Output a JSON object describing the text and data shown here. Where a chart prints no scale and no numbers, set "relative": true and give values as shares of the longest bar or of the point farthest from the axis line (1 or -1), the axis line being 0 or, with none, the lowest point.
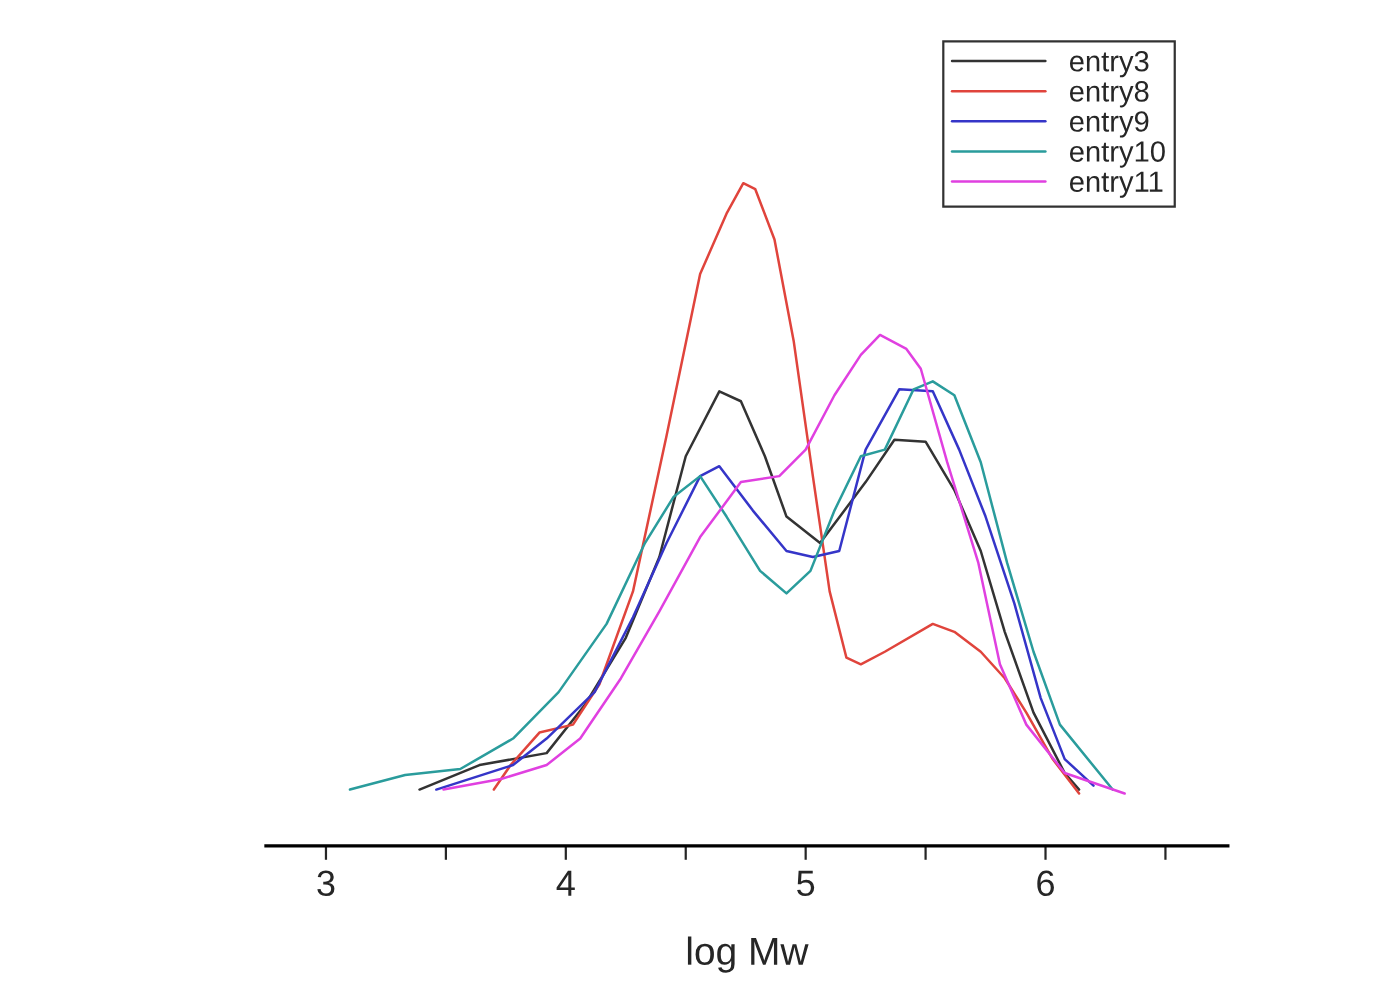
{
  "chart_data": {
    "type": "line",
    "relative": true,
    "xlabel": "log Mw",
    "xlim": [
      2.75,
      6.76
    ],
    "xticks": [
      3,
      {
        "value": 3.5,
        "label": null
      },
      4,
      {
        "value": 4.5,
        "label": null
      },
      5,
      {
        "value": 5.5,
        "label": null
      },
      6,
      {
        "value": 6.5,
        "label": null
      }
    ],
    "legend": "top right",
    "grid": false,
    "tick_labels": "x",
    "series": [
      {
        "name": "entry3",
        "color": "#333333",
        "x": [
          3.39,
          3.64,
          3.92,
          4.08,
          4.25,
          4.39,
          4.5,
          4.64,
          4.73,
          4.83,
          4.92,
          5.06,
          5.25,
          5.37,
          5.5,
          5.62,
          5.73,
          5.83,
          5.95,
          6.08,
          6.14
        ],
        "values": [
          0.085,
          0.122,
          0.14,
          0.213,
          0.314,
          0.436,
          0.588,
          0.686,
          0.671,
          0.588,
          0.497,
          0.457,
          0.549,
          0.613,
          0.61,
          0.537,
          0.445,
          0.323,
          0.201,
          0.11,
          0.085
        ]
      },
      {
        "name": "entry8",
        "color": "#e0443c",
        "x": [
          3.7,
          3.77,
          3.89,
          4.03,
          4.14,
          4.28,
          4.42,
          4.56,
          4.67,
          4.74,
          4.79,
          4.87,
          4.95,
          5.03,
          5.1,
          5.17,
          5.23,
          5.33,
          5.53,
          5.62,
          5.73,
          5.83,
          5.92,
          6.03,
          6.14
        ],
        "values": [
          0.085,
          0.122,
          0.171,
          0.183,
          0.244,
          0.384,
          0.619,
          0.863,
          0.954,
          1.0,
          0.991,
          0.915,
          0.762,
          0.558,
          0.384,
          0.284,
          0.274,
          0.293,
          0.335,
          0.323,
          0.293,
          0.253,
          0.201,
          0.131,
          0.079
        ]
      },
      {
        "name": "entry9",
        "color": "#3535c8",
        "x": [
          3.46,
          3.78,
          3.92,
          4.12,
          4.28,
          4.42,
          4.56,
          4.64,
          4.78,
          4.92,
          5.03,
          5.14,
          5.25,
          5.39,
          5.53,
          5.64,
          5.75,
          5.87,
          5.98,
          6.08,
          6.2
        ],
        "values": [
          0.085,
          0.122,
          0.162,
          0.232,
          0.345,
          0.457,
          0.558,
          0.573,
          0.506,
          0.445,
          0.436,
          0.445,
          0.598,
          0.689,
          0.686,
          0.598,
          0.497,
          0.366,
          0.223,
          0.131,
          0.091
        ]
      },
      {
        "name": "entry10",
        "color": "#2a9c9c",
        "x": [
          3.1,
          3.33,
          3.56,
          3.78,
          3.97,
          4.17,
          4.33,
          4.45,
          4.56,
          4.67,
          4.81,
          4.92,
          5.02,
          5.12,
          5.23,
          5.33,
          5.45,
          5.53,
          5.62,
          5.73,
          5.84,
          5.95,
          6.06,
          6.28
        ],
        "values": [
          0.085,
          0.107,
          0.116,
          0.162,
          0.232,
          0.335,
          0.457,
          0.527,
          0.558,
          0.497,
          0.415,
          0.381,
          0.415,
          0.506,
          0.588,
          0.598,
          0.689,
          0.701,
          0.68,
          0.579,
          0.427,
          0.293,
          0.183,
          0.085
        ]
      },
      {
        "name": "entry11",
        "color": "#e040e0",
        "x": [
          3.49,
          3.73,
          3.92,
          4.06,
          4.23,
          4.39,
          4.56,
          4.73,
          4.89,
          5.0,
          5.12,
          5.23,
          5.31,
          5.42,
          5.48,
          5.59,
          5.72,
          5.81,
          5.92,
          6.08,
          6.33
        ],
        "values": [
          0.085,
          0.101,
          0.122,
          0.162,
          0.253,
          0.354,
          0.466,
          0.549,
          0.558,
          0.598,
          0.68,
          0.741,
          0.771,
          0.75,
          0.72,
          0.579,
          0.427,
          0.274,
          0.183,
          0.11,
          0.079
        ]
      }
    ]
  }
}
